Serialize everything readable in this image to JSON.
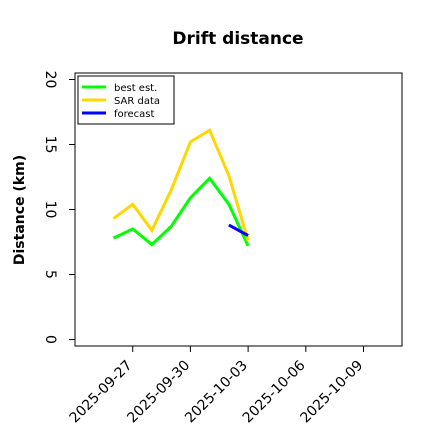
{
  "chart_data": {
    "type": "line",
    "title": "Drift distance",
    "xlabel": "",
    "ylabel": "Distance (km)",
    "x_axis": {
      "type": "date",
      "range": [
        "2025-09-24",
        "2025-10-11"
      ],
      "ticks": [
        "2025-09-27",
        "2025-09-30",
        "2025-10-03",
        "2025-10-06",
        "2025-10-09"
      ]
    },
    "y_axis": {
      "range": [
        -0.5,
        20.5
      ],
      "ticks": [
        0,
        5,
        10,
        15,
        20
      ]
    },
    "grid": false,
    "legend_position": "top-left",
    "series": [
      {
        "name": "best est.",
        "color": "#00ff00",
        "points": [
          {
            "x": "2025-09-26",
            "y": 7.8
          },
          {
            "x": "2025-09-27",
            "y": 8.5
          },
          {
            "x": "2025-09-28",
            "y": 7.3
          },
          {
            "x": "2025-09-29",
            "y": 8.7
          },
          {
            "x": "2025-09-30",
            "y": 10.9
          },
          {
            "x": "2025-10-01",
            "y": 12.4
          },
          {
            "x": "2025-10-02",
            "y": 10.4
          },
          {
            "x": "2025-10-03",
            "y": 7.2
          }
        ]
      },
      {
        "name": "SAR data",
        "color": "#ffd700",
        "points": [
          {
            "x": "2025-09-26",
            "y": 9.3
          },
          {
            "x": "2025-09-27",
            "y": 10.4
          },
          {
            "x": "2025-09-28",
            "y": 8.4
          },
          {
            "x": "2025-09-29",
            "y": 11.5
          },
          {
            "x": "2025-09-30",
            "y": 15.2
          },
          {
            "x": "2025-10-01",
            "y": 16.1
          },
          {
            "x": "2025-10-02",
            "y": 12.6
          },
          {
            "x": "2025-10-03",
            "y": 7.6
          }
        ]
      },
      {
        "name": "forecast",
        "color": "#0000ff",
        "points": [
          {
            "x": "2025-10-02",
            "y": 8.8
          },
          {
            "x": "2025-10-03",
            "y": 8.0
          }
        ]
      }
    ]
  }
}
